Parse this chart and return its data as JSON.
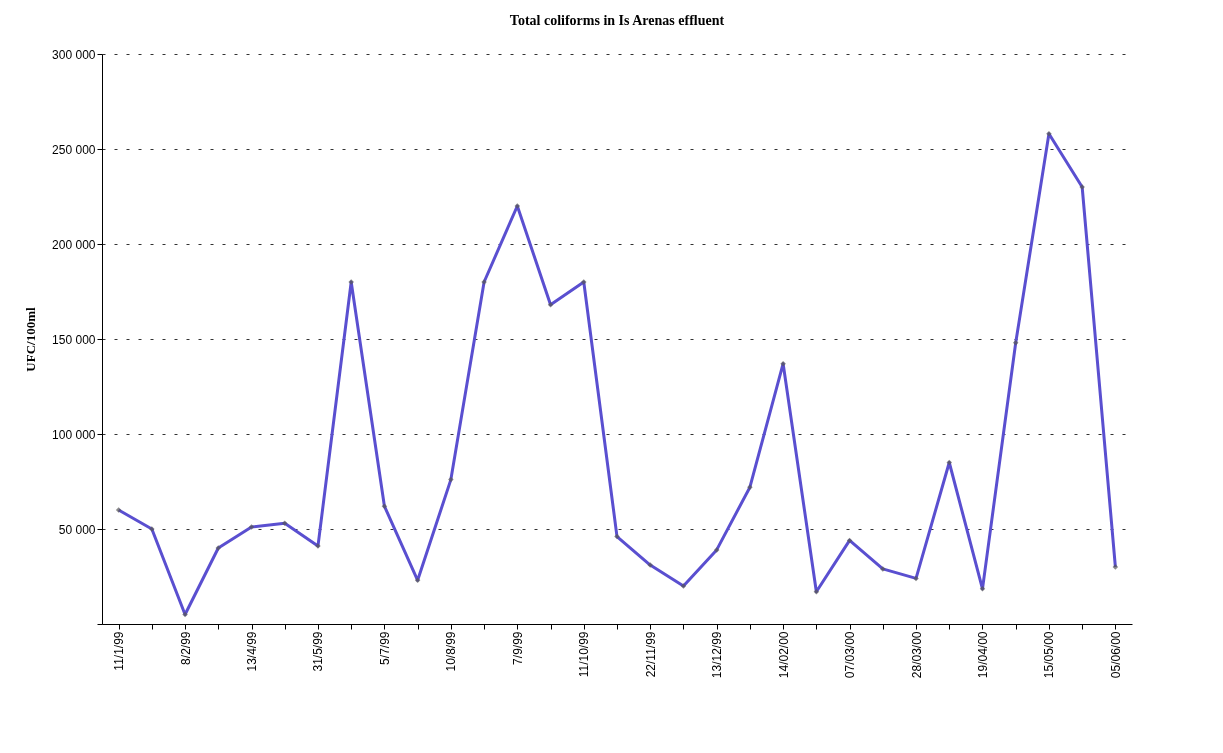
{
  "chart_data": {
    "type": "line",
    "title": "Total coliforms in Is Arenas effluent",
    "ylabel": "UFC/100ml",
    "categories": [
      "11/1/99",
      null,
      "8/2/99",
      null,
      "13/4/99",
      null,
      "31/5/99",
      null,
      "5/7/99",
      null,
      "10/8/99",
      null,
      "7/9/99",
      null,
      "11/10/99",
      null,
      "22/11/99",
      null,
      "13/12/99",
      null,
      "14/02/00",
      null,
      "07/03/00",
      null,
      "28/03/00",
      null,
      "19/04/00",
      null,
      "15/05/00",
      null,
      "05/06/00"
    ],
    "series": [
      {
        "color": "#5a4fd0",
        "values": [
          60000,
          50000,
          5000,
          40000,
          51000,
          53000,
          41000,
          180000,
          62000,
          23000,
          76000,
          180000,
          220000,
          168000,
          180000,
          46000,
          31000,
          20000,
          39000,
          72000,
          137000,
          17000,
          44000,
          29000,
          24000,
          85000,
          18500,
          148000,
          258000,
          230000,
          30000
        ]
      }
    ],
    "ylim": [
      0,
      300000
    ],
    "yticks": [
      {
        "value": 0,
        "label": null
      },
      {
        "value": 50000,
        "label": "50 000"
      },
      {
        "value": 100000,
        "label": "100 000"
      },
      {
        "value": 150000,
        "label": "150 000"
      },
      {
        "value": 200000,
        "label": "200 000"
      },
      {
        "value": 250000,
        "label": "250 000"
      },
      {
        "value": 300000,
        "label": "300 000"
      }
    ],
    "grid": "y",
    "marker": "diamond",
    "line_style": "solid"
  }
}
